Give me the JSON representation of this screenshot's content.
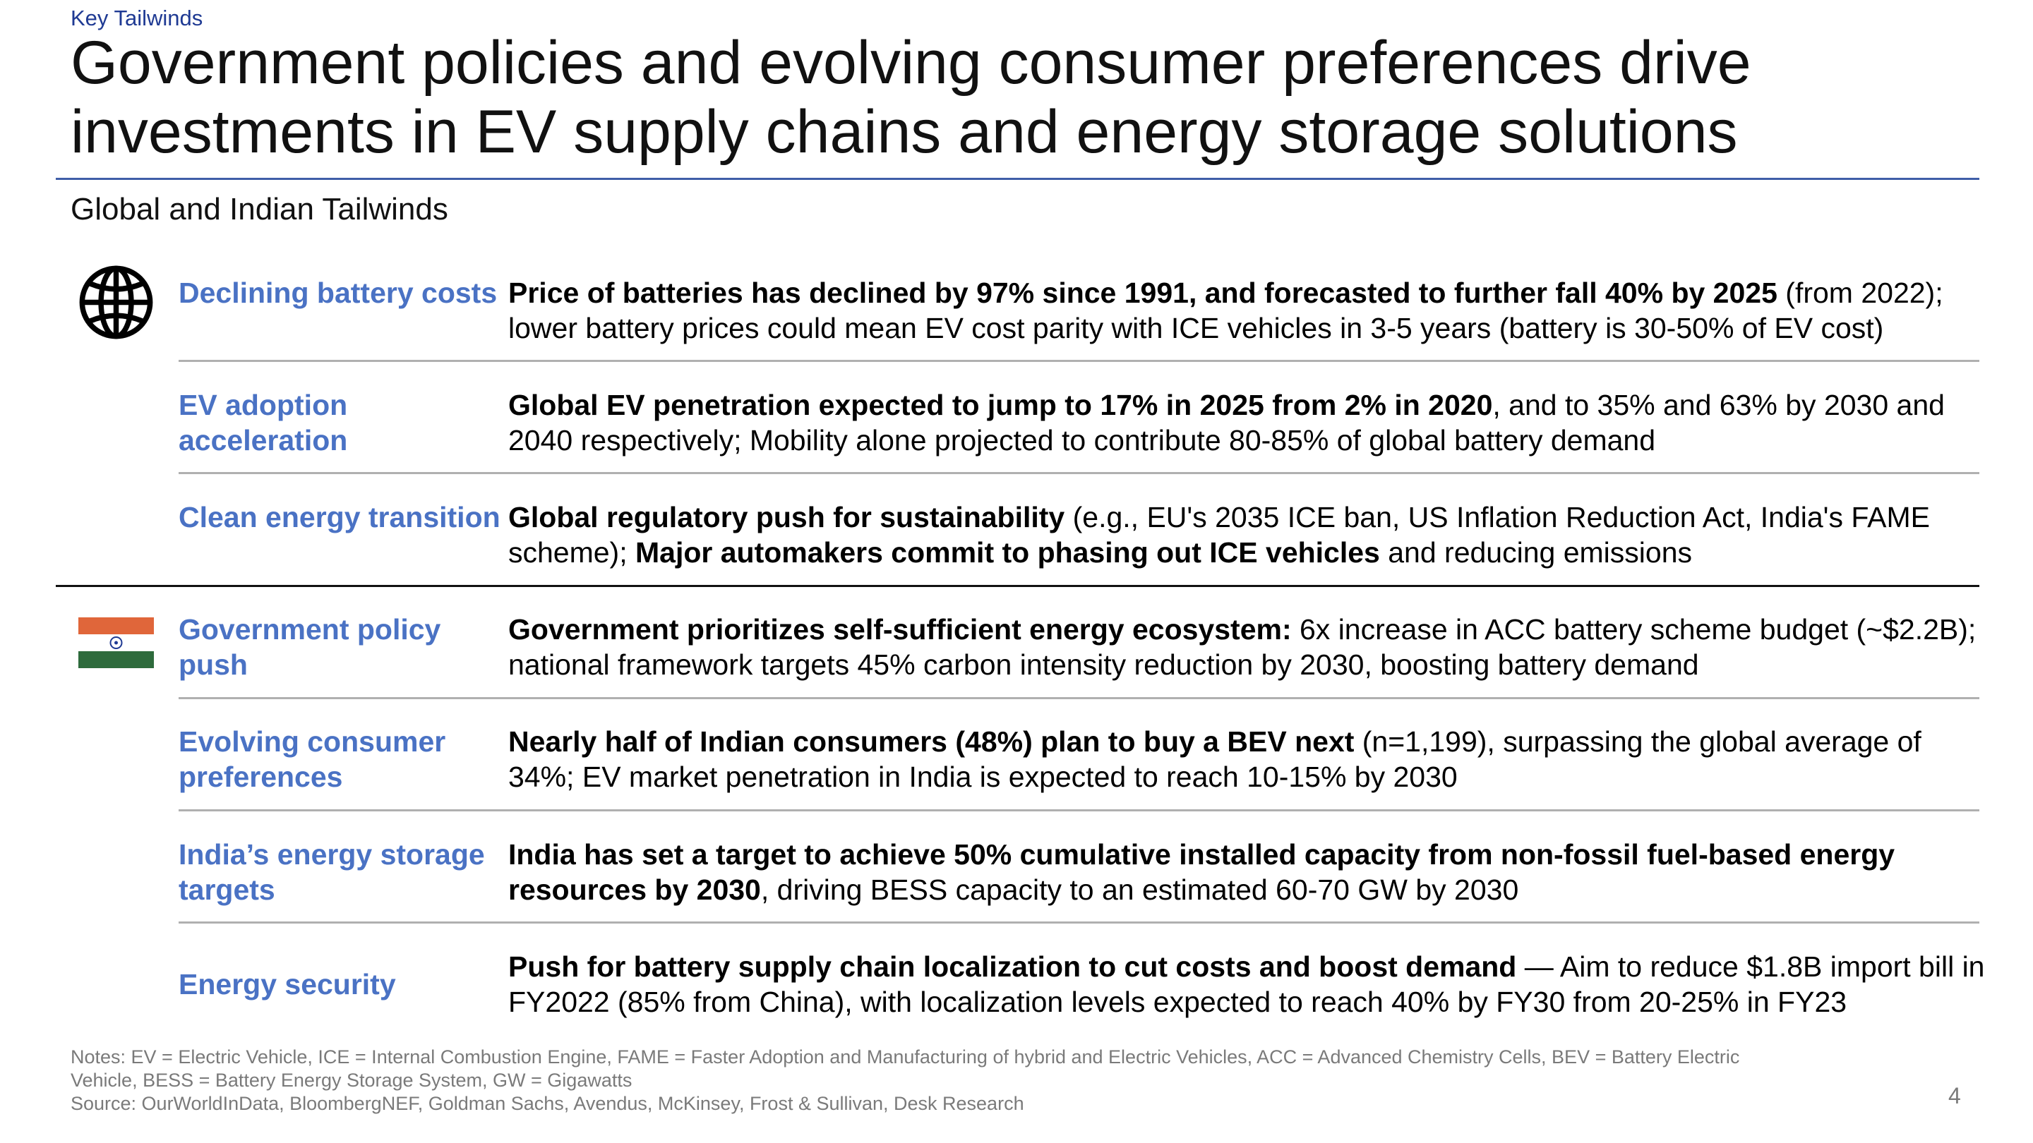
{
  "header": {
    "kicker": "Key Tailwinds",
    "title": "Government policies and evolving consumer preferences drive investments in EV supply chains and energy storage solutions",
    "subtitle": "Global and Indian Tailwinds"
  },
  "colors": {
    "label_blue": "#4a72c4",
    "rule_blue": "#3f5ea8",
    "flag_saffron": "#e0663a",
    "flag_green": "#2e6b3c"
  },
  "groups": {
    "global_icon": "globe-icon",
    "india_icon": "india-flag-icon"
  },
  "rows": [
    {
      "label": "Declining battery costs",
      "segments": [
        {
          "text": "Price of batteries has declined by 97% since 1991, and forecasted to further fall 40% by 2025",
          "bold": true
        },
        {
          "text": " (from 2022); lower battery prices could mean EV cost parity with ICE vehicles in 3-5 years (battery is 30-50% of EV cost)",
          "bold": false
        }
      ]
    },
    {
      "label": "EV adoption acceleration",
      "segments": [
        {
          "text": "Global EV penetration expected to jump to 17% in 2025 from 2% in 2020",
          "bold": true
        },
        {
          "text": ", and to 35% and 63% by 2030 and 2040 respectively; Mobility alone projected to contribute 80-85% of global battery demand",
          "bold": false
        }
      ]
    },
    {
      "label": "Clean energy transition",
      "segments": [
        {
          "text": "Global regulatory push for sustainability",
          "bold": true
        },
        {
          "text": " (e.g., EU's 2035 ICE ban, US Inflation Reduction Act, India's FAME scheme); ",
          "bold": false
        },
        {
          "text": "Major automakers commit to phasing out ICE vehicles",
          "bold": true
        },
        {
          "text": " and reducing emissions",
          "bold": false
        }
      ]
    },
    {
      "label": "Government policy push",
      "segments": [
        {
          "text": "Government prioritizes self-sufficient energy ecosystem:",
          "bold": true
        },
        {
          "text": " 6x increase in ACC battery scheme budget (~$2.2B); national framework targets 45% carbon intensity reduction by 2030, boosting battery demand",
          "bold": false
        }
      ]
    },
    {
      "label": "Evolving consumer preferences",
      "segments": [
        {
          "text": "Nearly half of Indian consumers (48%) plan to buy a BEV next",
          "bold": true
        },
        {
          "text": " (n=1,199), surpassing the global average of 34%; EV market penetration in India is expected to reach 10-15% by 2030",
          "bold": false
        }
      ]
    },
    {
      "label": "India’s energy storage targets",
      "segments": [
        {
          "text": "India has set a target to achieve 50% cumulative installed capacity from non-fossil fuel-based energy resources by 2030",
          "bold": true
        },
        {
          "text": ", driving BESS capacity to an estimated 60-70 GW by 2030",
          "bold": false
        }
      ]
    },
    {
      "label": "Energy security",
      "segments": [
        {
          "text": "Push for battery supply chain localization to cut costs and boost demand",
          "bold": true
        },
        {
          "text": " — Aim to reduce $1.8B import bill in FY2022 (85% from China), with localization levels expected to reach 40% by FY30 from 20-25% in FY23",
          "bold": false
        }
      ]
    }
  ],
  "footer": {
    "notes": "Notes: EV = Electric Vehicle, ICE = Internal Combustion Engine, FAME = Faster Adoption and Manufacturing of hybrid and Electric Vehicles, ACC = Advanced Chemistry Cells, BEV = Battery Electric Vehicle, BESS = Battery Energy Storage System, GW = Gigawatts",
    "source": "Source: OurWorldInData, BloombergNEF, Goldman Sachs, Avendus, McKinsey, Frost & Sullivan, Desk Research",
    "page_number": "4"
  }
}
